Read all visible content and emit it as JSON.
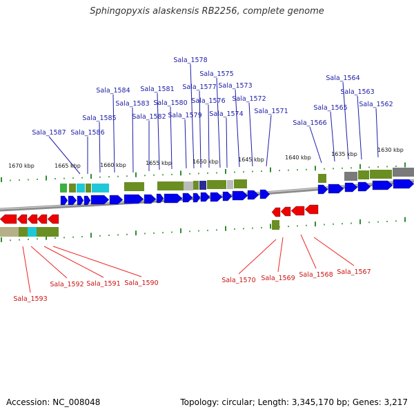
{
  "title": "Sphingopyxis alaskensis RB2256, complete genome",
  "footer": {
    "accession": "Accession: NC_008048",
    "summary": "Topology: circular; Length: 3,345,170 bp; Genes: 3,217"
  },
  "colors": {
    "forward_gene": "#0000ee",
    "reverse_gene": "#ee0000",
    "forward_label": "#1a1aa6",
    "reverse_label": "#cc1111",
    "leader_forward": "#1a1aa6",
    "leader_reverse": "#ee2222",
    "tick": "#2e8b2e",
    "backbone": "#8c8c8c",
    "cog_olive": "#6b8e23",
    "cog_cyan": "#1ec8d8",
    "cog_green": "#3cb043",
    "cog_gray": "#bbbbbb",
    "cog_tan": "#b5b088"
  },
  "scale_labels": [
    "1670 kbp",
    "1665 kbp",
    "1660 kbp",
    "1655 kbp",
    "1650 kbp",
    "1645 kbp",
    "1640 kbp",
    "1635 kbp",
    "1630 kbp"
  ],
  "forward_genes": [
    "Sala_1587",
    "Sala_1586",
    "Sala_1585",
    "Sala_1584",
    "Sala_1583",
    "Sala_1582",
    "Sala_1581",
    "Sala_1580",
    "Sala_1579",
    "Sala_1578",
    "Sala_1577",
    "Sala_1576",
    "Sala_1575",
    "Sala_1574",
    "Sala_1573",
    "Sala_1572",
    "Sala_1571",
    "Sala_1566",
    "Sala_1565",
    "Sala_1564",
    "Sala_1563",
    "Sala_1562"
  ],
  "reverse_genes": [
    "Sala_1593",
    "Sala_1592",
    "Sala_1591",
    "Sala_1590",
    "Sala_1570",
    "Sala_1569",
    "Sala_1568",
    "Sala_1567"
  ]
}
